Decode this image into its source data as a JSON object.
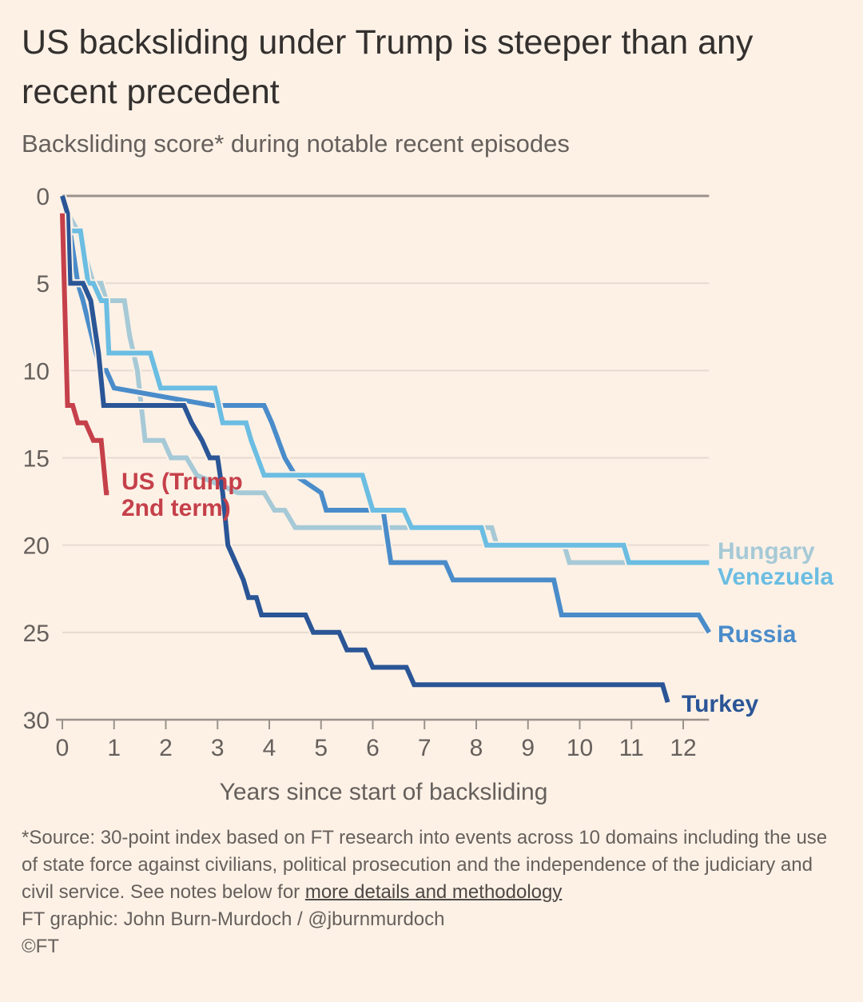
{
  "title": "US backsliding under Trump is steeper than any recent precedent",
  "subtitle": "Backsliding score* during notable recent episodes",
  "footer": {
    "note_text": "*Source: 30-point index based on FT research into events across 10 domains including the use of state force against civilians, political prosecution and the independence of the judiciary and civil service. See notes below for ",
    "note_link": "more details and methodology",
    "credit": "FT graphic: John Burn-Murdoch / @jburnmurdoch",
    "copyright": "©FT"
  },
  "chart_data": {
    "type": "line",
    "title": "US backsliding under Trump is steeper than any recent precedent",
    "subtitle": "Backsliding score* during notable recent episodes",
    "xlabel": "Years since start of backsliding",
    "ylabel": "",
    "xlim": [
      0,
      12.5
    ],
    "ylim": [
      0,
      30
    ],
    "y_inverted": true,
    "grid": true,
    "legend": "direct-labels-right",
    "xticks": [
      "0",
      "1",
      "2",
      "3",
      "4",
      "5",
      "6",
      "7",
      "8",
      "9",
      "10",
      "11",
      "12"
    ],
    "yticks": [
      "0",
      "5",
      "10",
      "15",
      "20",
      "25",
      "30"
    ],
    "series": [
      {
        "name": "Hungary",
        "label": "Hungary",
        "color": "#a6c9d6",
        "x": [
          0,
          0.1,
          0.3,
          0.6,
          0.75,
          0.85,
          1.2,
          1.3,
          1.45,
          1.6,
          1.95,
          2.1,
          2.4,
          2.6,
          3.4,
          3.9,
          4.1,
          4.3,
          4.5,
          4.6,
          4.7,
          6.0,
          7.5,
          8.3,
          8.4,
          9.7,
          9.8,
          10.9,
          12.5
        ],
        "y": [
          0,
          1,
          2,
          5,
          5,
          6,
          6,
          8,
          10,
          14,
          14,
          15,
          15,
          16,
          17,
          17,
          18,
          18,
          19,
          19,
          19,
          19,
          19,
          19,
          20,
          20,
          21,
          21,
          21
        ]
      },
      {
        "name": "Venezuela",
        "label": "Venezuela",
        "color": "#6bbde2",
        "x": [
          0,
          0.1,
          0.15,
          0.35,
          0.5,
          0.6,
          0.75,
          0.85,
          0.9,
          1.0,
          1.7,
          1.9,
          2.95,
          3.1,
          3.55,
          3.65,
          3.9,
          5.8,
          5.9,
          6.0,
          6.6,
          6.75,
          8.1,
          8.2,
          10.85,
          10.95,
          12.5
        ],
        "y": [
          0,
          1,
          2,
          2,
          5,
          5,
          6,
          6,
          9,
          9,
          9,
          11,
          11,
          13,
          13,
          14,
          16,
          16,
          17,
          18,
          18,
          19,
          19,
          20,
          20,
          21,
          21
        ]
      },
      {
        "name": "Russia",
        "label": "Russia",
        "color": "#4a8cca",
        "x": [
          0,
          0.15,
          0.3,
          0.4,
          0.65,
          0.75,
          0.85,
          1.0,
          2.9,
          3.1,
          3.9,
          4.05,
          4.3,
          4.5,
          5.0,
          5.1,
          5.3,
          6.2,
          6.35,
          7.4,
          7.55,
          9.5,
          9.65,
          12.3,
          12.5
        ],
        "y": [
          0,
          2,
          5,
          6,
          9,
          10,
          10,
          11,
          12,
          12,
          12,
          13,
          15,
          16,
          17,
          18,
          18,
          18,
          21,
          21,
          22,
          22,
          24,
          24,
          25
        ]
      },
      {
        "name": "Turkey",
        "label": "Turkey",
        "color": "#2a5596",
        "x": [
          0,
          0.1,
          0.15,
          0.4,
          0.55,
          0.7,
          0.8,
          2.35,
          2.5,
          2.7,
          2.85,
          3.0,
          3.1,
          3.2,
          3.35,
          3.5,
          3.6,
          3.75,
          3.85,
          4.7,
          4.85,
          5.35,
          5.5,
          5.85,
          6.0,
          6.65,
          6.8,
          11.6,
          11.7
        ],
        "y": [
          0,
          1,
          5,
          5,
          6,
          9,
          12,
          12,
          13,
          14,
          15,
          15,
          17,
          20,
          21,
          22,
          23,
          23,
          24,
          24,
          25,
          25,
          26,
          26,
          27,
          27,
          28,
          28,
          29
        ]
      },
      {
        "name": "US (Trump 2nd term)",
        "label": "US (Trump 2nd term)",
        "color": "#c5404a",
        "x": [
          0,
          0.1,
          0.2,
          0.3,
          0.45,
          0.6,
          0.75,
          0.85,
          0.9
        ],
        "y": [
          1,
          12,
          12,
          13,
          13,
          14,
          14,
          17,
          17
        ]
      }
    ]
  }
}
